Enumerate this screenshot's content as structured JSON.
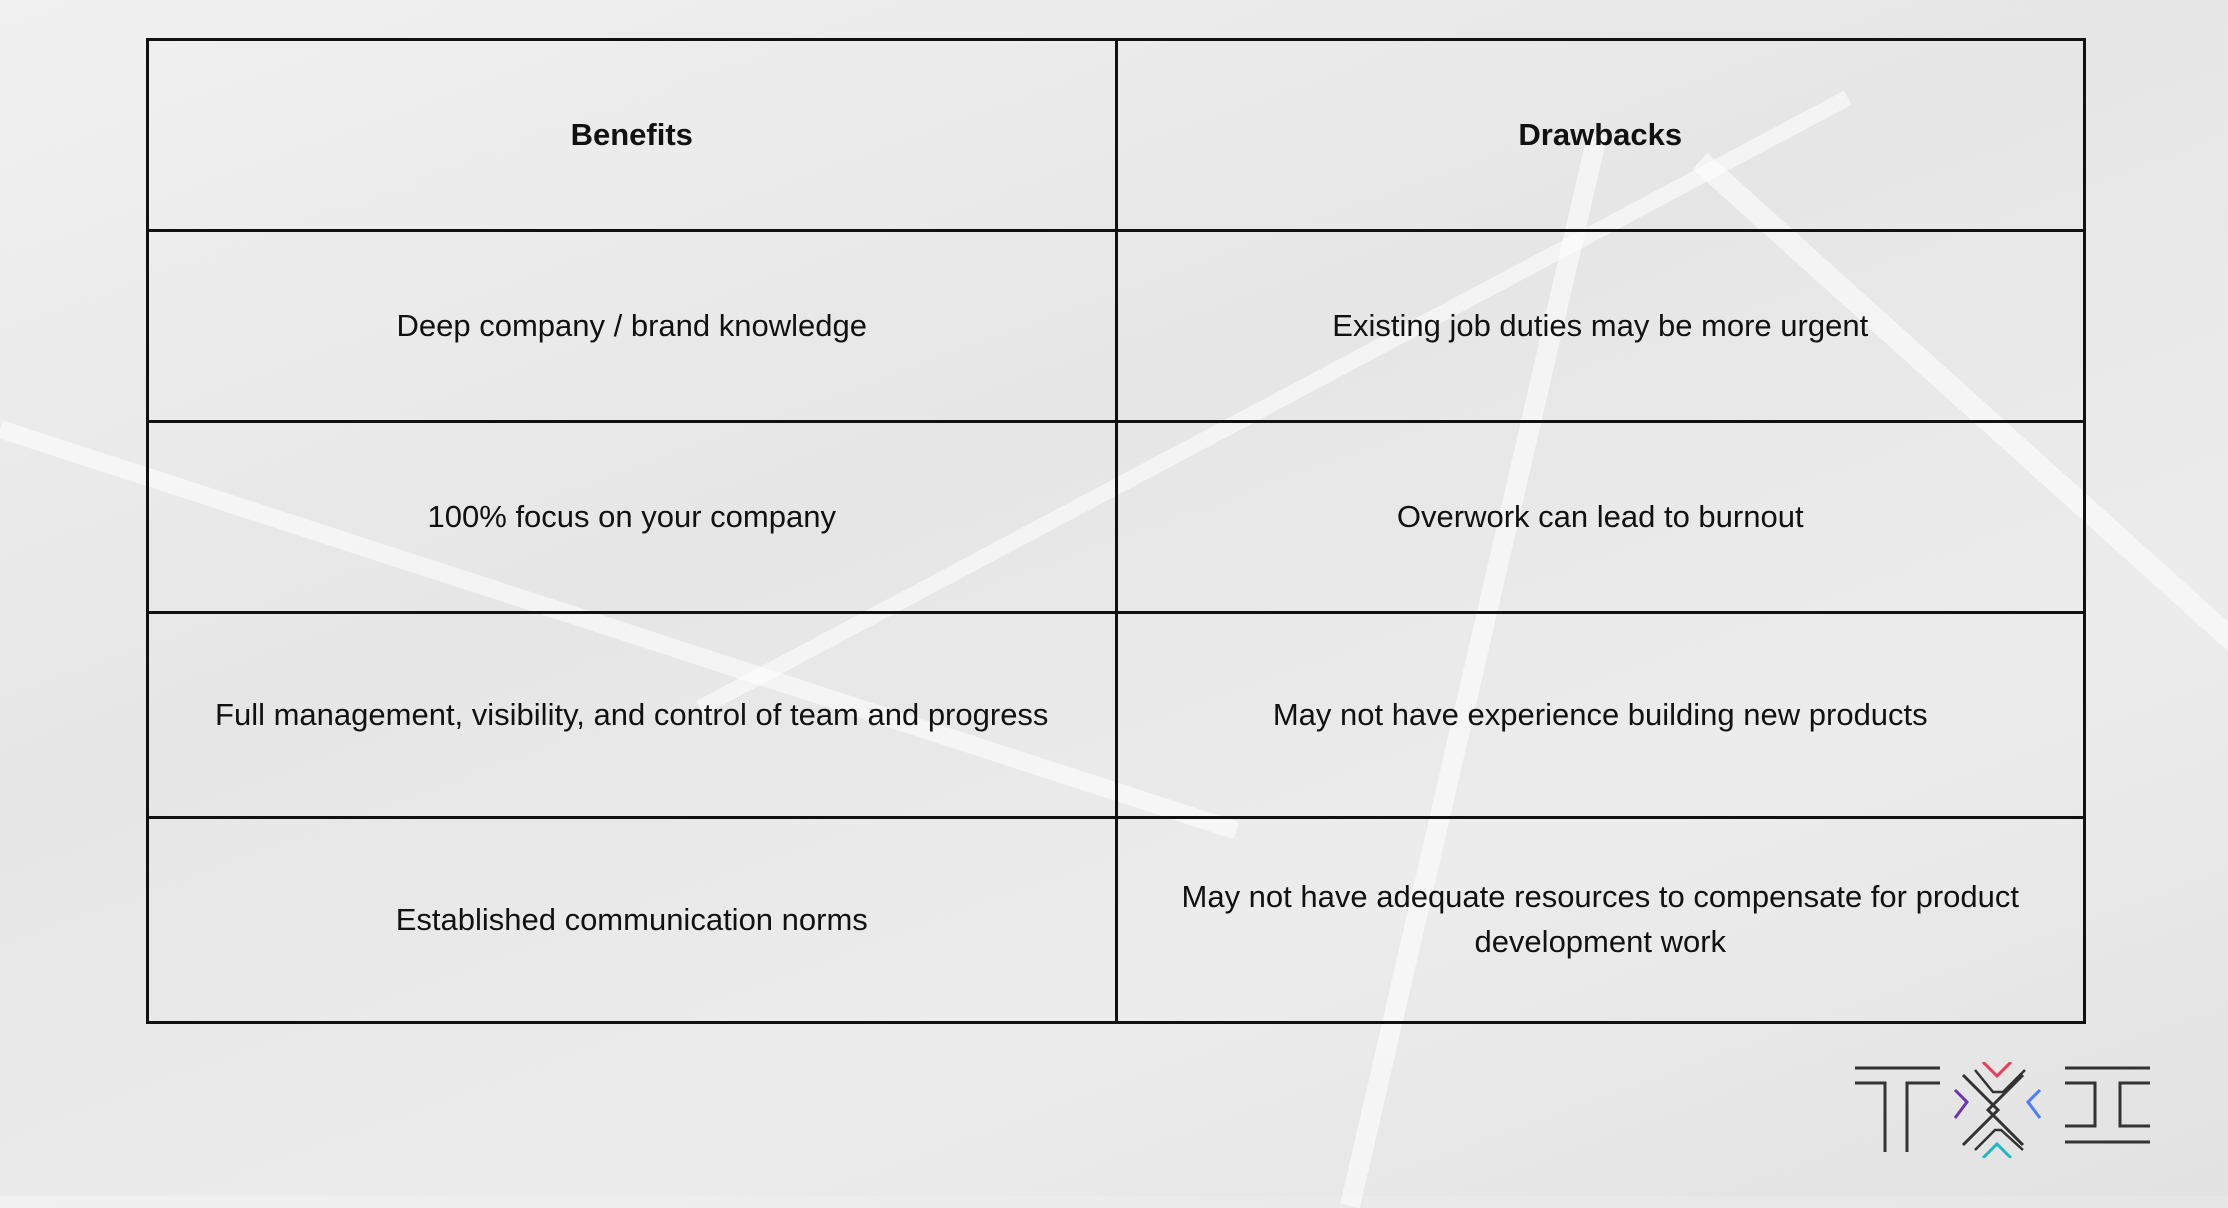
{
  "table": {
    "headers": [
      "Benefits",
      "Drawbacks"
    ],
    "rows": [
      [
        "Deep company / brand knowledge",
        "Existing job duties may be more urgent"
      ],
      [
        "100% focus on your company",
        "Overwork can lead to burnout"
      ],
      [
        "Full management, visibility, and control of team and progress",
        "May not have experience building new products"
      ],
      [
        "Established communication norms",
        "May not have adequate resources to compensate for product development work"
      ]
    ]
  },
  "logo": {
    "text": "TXC",
    "colors": {
      "top": "#f0395a",
      "left": "#6a35b0",
      "right": "#4f7cff",
      "bottom": "#20b8c0",
      "strokes": "#333333"
    }
  }
}
